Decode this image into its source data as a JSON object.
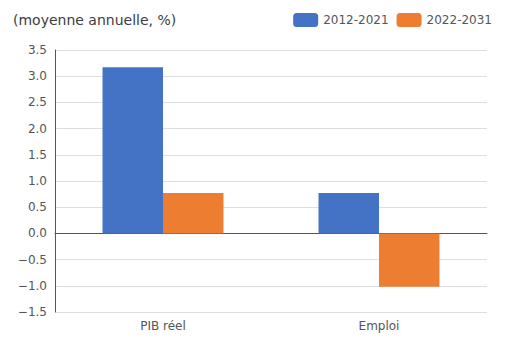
{
  "chart_data": {
    "type": "bar",
    "title": "(moyenne annuelle, %)",
    "categories": [
      "PIB réel",
      "Emploi"
    ],
    "series": [
      {
        "name": "2012-2021",
        "color": "#4472C4",
        "values": [
          3.17,
          0.77
        ]
      },
      {
        "name": "2022-2031",
        "color": "#ED7D31",
        "values": [
          0.77,
          -1.02
        ]
      }
    ],
    "ylim": [
      -1.5,
      3.5
    ],
    "yticks": [
      {
        "value": -1.5,
        "label": "−1.5"
      },
      {
        "value": -1.0,
        "label": "−1.0"
      },
      {
        "value": -0.5,
        "label": "−0.5"
      },
      {
        "value": 0.0,
        "label": "0.0"
      },
      0.5,
      {
        "value": 1.0,
        "label": "1.0"
      },
      1.5,
      {
        "value": 2.0,
        "label": "2.0"
      },
      2.5,
      {
        "value": 3.0,
        "label": "3.0"
      },
      3.5
    ],
    "grid": true,
    "legend": "upper right"
  }
}
